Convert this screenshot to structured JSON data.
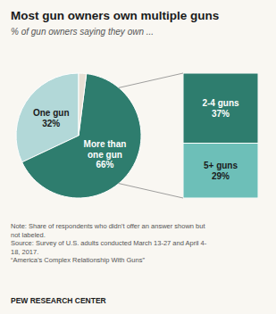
{
  "chart_data": [
    {
      "type": "pie",
      "title": "Most gun owners own multiple guns",
      "subtitle": "% of gun owners saying they own ...",
      "categories": [
        "One gun",
        "More than\none gun",
        null
      ],
      "values": [
        32,
        66,
        2
      ],
      "value_labels": [
        "32%",
        "66%",
        null
      ],
      "colors": [
        "#b2d8d8",
        "#2e7d6e",
        "#e8e0d5"
      ],
      "data_labels": true,
      "annotations": [
        "Note: Share of respondents who didn’t offer an answer shown but\nnot labeled.\nSource: Survey of U.S. adults conducted March 13-27 and April 4-\n18, 2017.\n“America’s Complex Relationship With Guns”",
        "PEW RESEARCH CENTER"
      ]
    },
    {
      "type": "bar",
      "stacked": true,
      "data_labels": true,
      "tick_labels": false,
      "categories": [
        null
      ],
      "ylim": [
        0,
        66
      ],
      "series": [
        {
          "name": "2-4 guns",
          "color": "#2e7d6e",
          "values": [
            37
          ],
          "value_labels": [
            "37%"
          ]
        },
        {
          "name": "5+ guns",
          "color": "#6dbfb8",
          "values": [
            29
          ],
          "value_labels": [
            "29%"
          ]
        }
      ]
    }
  ]
}
